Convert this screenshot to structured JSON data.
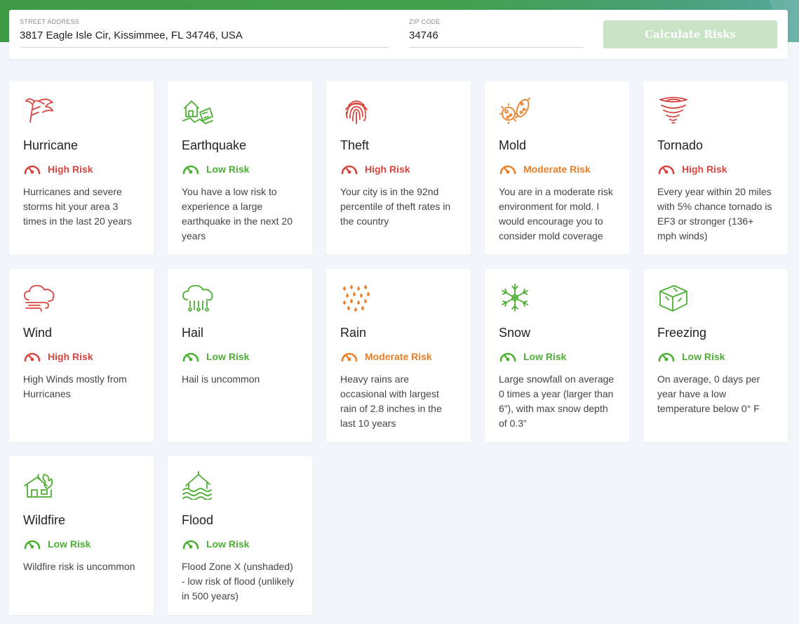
{
  "colors": {
    "high": "#d9453f",
    "moderate": "#ee7d26",
    "low": "#4caf32",
    "button_bg": "#c9e3c6"
  },
  "form": {
    "address_label": "STREET ADDRESS",
    "address_value": "3817 Eagle Isle Cir, Kissimmee, FL 34746, USA",
    "zip_label": "ZIP CODE",
    "zip_value": "34746",
    "button_label": "Calculate Risks"
  },
  "cards": [
    {
      "title": "Hurricane",
      "risk": "High Risk",
      "level": "high",
      "icon": "hurricane-icon",
      "desc": "Hurricanes and severe storms hit your area 3 times in the last 20 years"
    },
    {
      "title": "Earthquake",
      "risk": "Low Risk",
      "level": "low",
      "icon": "earthquake-icon",
      "desc": "You have a low risk to experience a large earthquake in the next 20 years"
    },
    {
      "title": "Theft",
      "risk": "High Risk",
      "level": "high",
      "icon": "fingerprint-icon",
      "desc": "Your city is in the 92nd percentile of theft rates in the country"
    },
    {
      "title": "Mold",
      "risk": "Moderate Risk",
      "level": "moderate",
      "icon": "mold-icon",
      "desc": "You are in a moderate risk environment for mold. I would encourage you to consider mold coverage"
    },
    {
      "title": "Tornado",
      "risk": "High Risk",
      "level": "high",
      "icon": "tornado-icon",
      "desc": "Every year within 20 miles with 5% chance tornado is EF3 or stronger (136+ mph winds)"
    },
    {
      "title": "Wind",
      "risk": "High Risk",
      "level": "high",
      "icon": "wind-icon",
      "desc": "High Winds mostly from Hurricanes"
    },
    {
      "title": "Hail",
      "risk": "Low Risk",
      "level": "low",
      "icon": "hail-icon",
      "desc": "Hail is uncommon"
    },
    {
      "title": "Rain",
      "risk": "Moderate Risk",
      "level": "moderate",
      "icon": "rain-icon",
      "desc": "Heavy rains are occasional with largest rain of 2.8 inches in the last 10 years"
    },
    {
      "title": "Snow",
      "risk": "Low Risk",
      "level": "low",
      "icon": "snowflake-icon",
      "desc": "Large snowfall on average 0 times a year (larger than 6”), with max snow depth of 0.3”"
    },
    {
      "title": "Freezing",
      "risk": "Low Risk",
      "level": "low",
      "icon": "ice-cube-icon",
      "desc": "On average, 0 days per year have a low temperature below 0° F"
    },
    {
      "title": "Wildfire",
      "risk": "Low Risk",
      "level": "low",
      "icon": "wildfire-icon",
      "desc": "Wildfire risk is uncommon"
    },
    {
      "title": "Flood",
      "risk": "Low Risk",
      "level": "low",
      "icon": "flood-icon",
      "desc": "Flood Zone X (unshaded) - low risk of flood (unlikely in 500 years)"
    }
  ]
}
